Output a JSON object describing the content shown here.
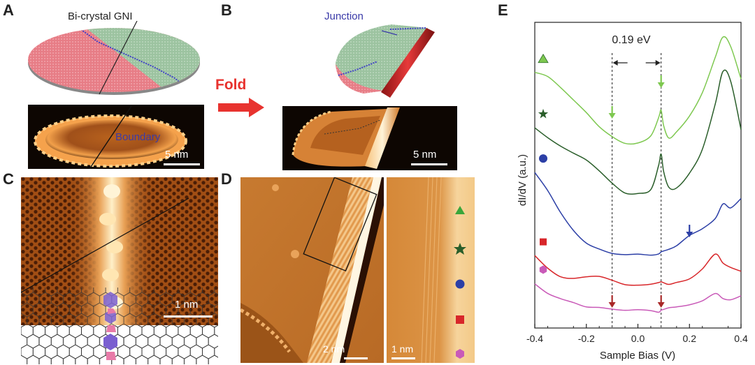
{
  "panels": {
    "A": {
      "label": "A",
      "title": "Bi-crystal GNI",
      "boundary": "Boundary",
      "scale": "5 nm"
    },
    "B": {
      "label": "B",
      "junction": "Junction",
      "scale": "5 nm"
    },
    "fold": "Fold",
    "C": {
      "label": "C",
      "scale": "1 nm"
    },
    "D": {
      "label": "D",
      "scale_left": "2 nm",
      "scale_right": "1 nm"
    },
    "E": {
      "label": "E",
      "gap_label": "0.19 eV"
    }
  },
  "colors": {
    "green_light": "#7ec850",
    "green_dark": "#2a5e2a",
    "blue": "#2c3fa6",
    "red": "#d8262a",
    "magenta": "#c95ab8",
    "fold_arrow": "#e8332f"
  },
  "chart_data": {
    "type": "line",
    "xlabel": "Sample Bias (V)",
    "ylabel": "dI/dV (a.u.)",
    "xlim": [
      -0.4,
      0.4
    ],
    "xticks": [
      "-0.4",
      "-0.2",
      "0.0",
      "0.2",
      "0.4"
    ],
    "x": [
      -0.4,
      -0.35,
      -0.3,
      -0.25,
      -0.2,
      -0.15,
      -0.1,
      -0.05,
      0.0,
      0.05,
      0.08,
      0.09,
      0.1,
      0.12,
      0.15,
      0.2,
      0.25,
      0.3,
      0.33,
      0.36,
      0.4
    ],
    "series": [
      {
        "marker": "triangle",
        "color": "#7ec850",
        "values": [
          9.2,
          9.0,
          8.6,
          8.2,
          7.8,
          7.3,
          6.9,
          6.6,
          6.6,
          6.9,
          7.6,
          7.9,
          7.3,
          6.8,
          7.0,
          7.6,
          8.5,
          9.8,
          10.5,
          10.1,
          8.9
        ]
      },
      {
        "marker": "star",
        "color": "#2a5e2a",
        "values": [
          7.2,
          6.9,
          6.6,
          6.3,
          6.0,
          5.6,
          5.2,
          4.9,
          4.9,
          5.0,
          5.8,
          6.2,
          5.6,
          5.1,
          5.1,
          5.6,
          6.4,
          8.0,
          9.2,
          8.9,
          7.2
        ]
      },
      {
        "marker": "circle",
        "color": "#2c3fa6",
        "values": [
          5.6,
          4.9,
          4.1,
          3.5,
          3.1,
          2.9,
          2.7,
          2.6,
          2.6,
          2.6,
          2.7,
          2.8,
          2.8,
          2.8,
          2.9,
          3.3,
          3.6,
          4.0,
          4.5,
          4.3,
          4.6
        ]
      },
      {
        "marker": "square",
        "color": "#d8262a",
        "values": [
          2.6,
          2.2,
          1.9,
          1.8,
          1.8,
          1.8,
          1.7,
          1.6,
          1.6,
          1.6,
          1.6,
          1.6,
          1.6,
          1.6,
          1.7,
          1.8,
          2.1,
          2.6,
          2.3,
          2.2,
          2.1
        ]
      },
      {
        "marker": "hexagon",
        "color": "#c95ab8",
        "values": [
          1.6,
          1.2,
          1.0,
          0.9,
          0.8,
          0.8,
          0.7,
          0.6,
          0.6,
          0.6,
          0.6,
          0.7,
          0.7,
          0.7,
          0.7,
          0.8,
          1.0,
          1.3,
          1.1,
          1.0,
          1.1
        ]
      }
    ],
    "annotations": [
      {
        "text": "0.19 eV",
        "x_from": -0.1,
        "x_to": 0.09
      },
      {
        "arrow": "down",
        "color": "#7ec850",
        "x": -0.1
      },
      {
        "arrow": "down",
        "color": "#7ec850",
        "x": 0.09
      },
      {
        "arrow": "down",
        "color": "#2c3fa6",
        "x": 0.2
      },
      {
        "arrow": "down",
        "color": "#a82828",
        "x": -0.1
      },
      {
        "arrow": "down",
        "color": "#a82828",
        "x": 0.09
      }
    ]
  }
}
